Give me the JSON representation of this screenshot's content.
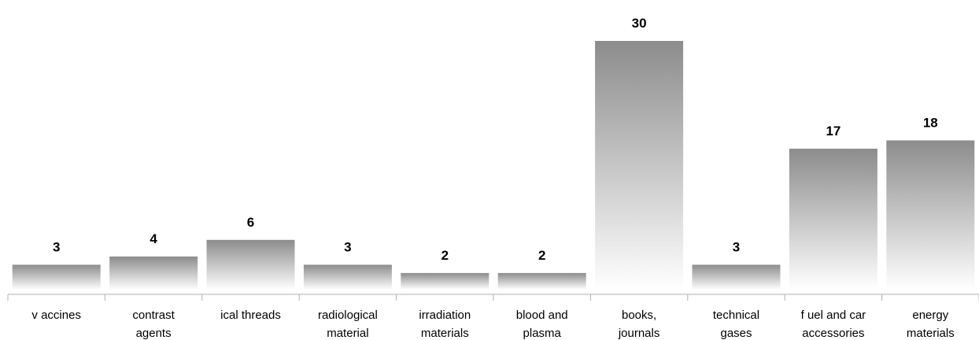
{
  "chart_data": {
    "type": "bar",
    "categories": [
      [
        "v accines"
      ],
      [
        "contrast",
        "agents"
      ],
      [
        "ical threads"
      ],
      [
        "radiological",
        "material"
      ],
      [
        "irradiation",
        "materials"
      ],
      [
        "blood and",
        "plasma"
      ],
      [
        "books,",
        "journals"
      ],
      [
        "technical",
        "gases"
      ],
      [
        "f uel and car",
        "accessories"
      ],
      [
        "energy",
        "materials"
      ]
    ],
    "values": [
      3,
      4,
      6,
      3,
      2,
      2,
      30,
      3,
      17,
      18
    ],
    "title": "",
    "xlabel": "",
    "ylabel": "",
    "ylim": [
      0,
      32
    ],
    "grid": false,
    "legend": "none",
    "colors": {
      "bar_top": "#8c8c8c",
      "bar_bottom": "#ffffff",
      "axis": "#b0b0b0",
      "text": "#000000"
    }
  }
}
